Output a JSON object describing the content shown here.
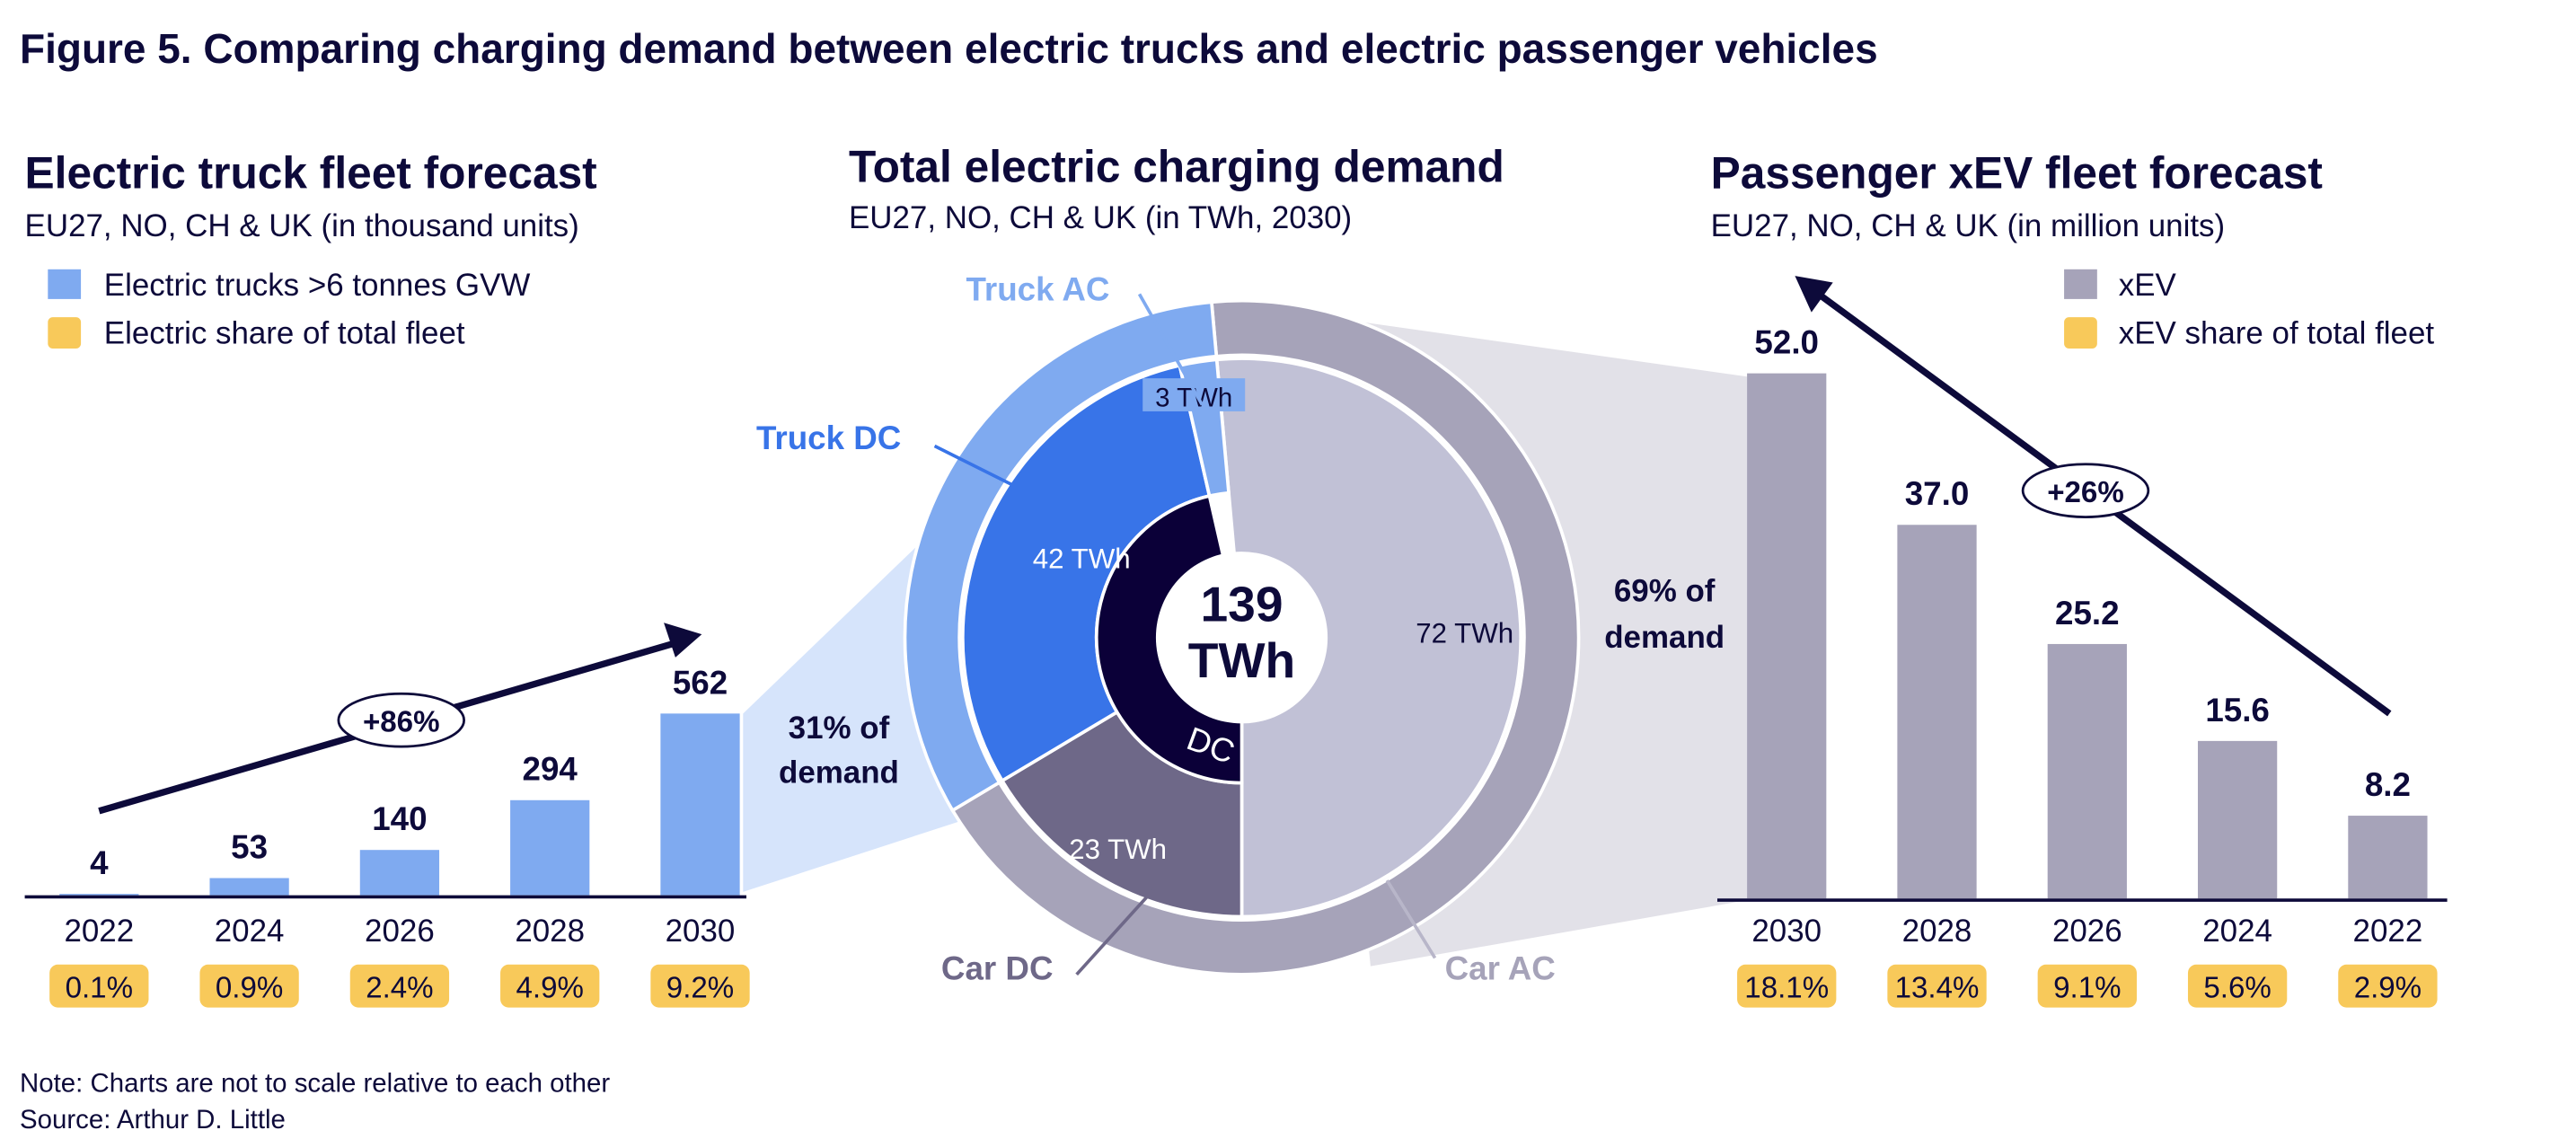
{
  "title": "Figure 5. Comparing charging demand between electric trucks and electric passenger vehicles",
  "note": "Note: Charts are not to scale relative to each other",
  "source": "Source: Arthur D. Little",
  "colors": {
    "text": "#0d0a3a",
    "truck_bar": "#7faaf0",
    "truck_dc": "#3874e8",
    "car_ac": "#c1c1d6",
    "car_outer": "#a6a3b9",
    "car_dc": "#6e6888",
    "dc_inner": "#0b0038",
    "share_badge": "#f8c95a",
    "truck_wedge": "#d6e4fb",
    "car_wedge": "#e2e1e8"
  },
  "chart_data": [
    {
      "type": "bar",
      "title": "Electric truck fleet forecast",
      "subtitle": "EU27, NO, CH & UK (in thousand units)",
      "legend": [
        "Electric trucks >6 tonnes GVW",
        "Electric share of total fleet"
      ],
      "categories": [
        "2022",
        "2024",
        "2026",
        "2028",
        "2030"
      ],
      "values": [
        4,
        53,
        140,
        294,
        562
      ],
      "value_labels": [
        "4",
        "53",
        "140",
        "294",
        "562"
      ],
      "share_labels": [
        "0.1%",
        "0.9%",
        "2.4%",
        "4.9%",
        "9.2%"
      ],
      "growth_label": "+86%",
      "demand_share": [
        "31% of",
        "demand"
      ]
    },
    {
      "type": "pie",
      "title": "Total electric charging demand",
      "subtitle": "EU27, NO, CH & UK (in TWh, 2030)",
      "total": [
        "139",
        "TWh"
      ],
      "inner_label": "DC",
      "slices": [
        {
          "name": "Car AC",
          "value": 72,
          "label": "72 TWh"
        },
        {
          "name": "Car DC",
          "value": 23,
          "label": "23 TWh"
        },
        {
          "name": "Truck DC",
          "value": 42,
          "label": "42 TWh"
        },
        {
          "name": "Truck AC",
          "value": 3,
          "label": "3 TWh"
        }
      ]
    },
    {
      "type": "bar",
      "title": "Passenger xEV fleet forecast",
      "subtitle": "EU27, NO, CH & UK (in million units)",
      "legend": [
        "xEV",
        "xEV share of total fleet"
      ],
      "categories": [
        "2030",
        "2028",
        "2026",
        "2024",
        "2022"
      ],
      "values": [
        52.0,
        37.0,
        25.2,
        15.6,
        8.2
      ],
      "value_labels": [
        "52.0",
        "37.0",
        "25.2",
        "15.6",
        "8.2"
      ],
      "share_labels": [
        "18.1%",
        "13.4%",
        "9.1%",
        "5.6%",
        "2.9%"
      ],
      "growth_label": "+26%",
      "demand_share": [
        "69% of",
        "demand"
      ]
    }
  ]
}
